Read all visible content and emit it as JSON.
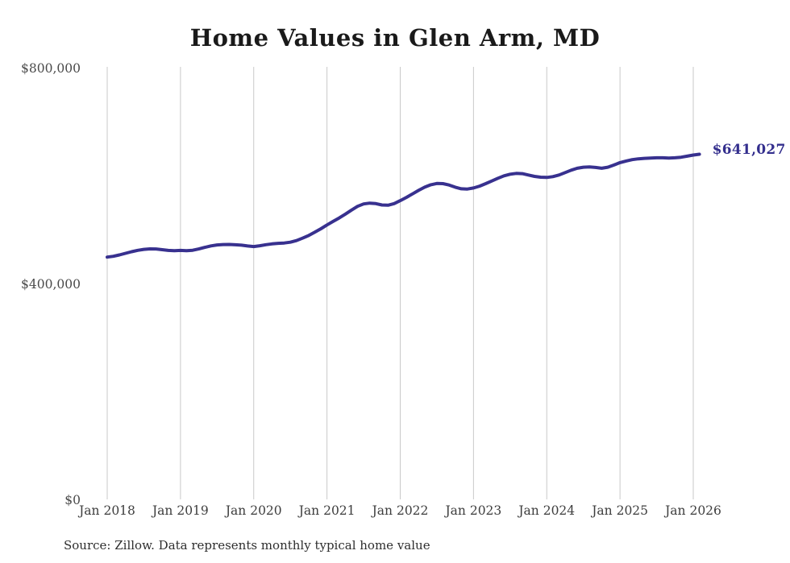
{
  "title": "Home Values in Glen Arm, MD",
  "source_note": "Source: Zillow. Data represents monthly typical home value",
  "colors": {
    "line": "#38318f",
    "end_label": "#332e8d",
    "grid": "#c9c9c9",
    "axis_text": "#4a4a4a",
    "title_text": "#1a1a1a",
    "source_text": "#2e2e2e",
    "background": "#ffffff"
  },
  "chart_data": {
    "type": "line",
    "title": "Home Values in Glen Arm, MD",
    "x_unit": "month",
    "x_start": "2018-01",
    "x_end": "2026-02",
    "x_tick_labels": [
      "Jan 2018",
      "Jan 2019",
      "Jan 2020",
      "Jan 2021",
      "Jan 2022",
      "Jan 2023",
      "Jan 2024",
      "Jan 2025",
      "Jan 2026"
    ],
    "months_per_tick": 12,
    "y_ticks": [
      {
        "label": "$0",
        "value": 0
      },
      {
        "label": "$400,000",
        "value": 400000
      },
      {
        "label": "$800,000",
        "value": 800000
      }
    ],
    "ylim": [
      0,
      800000
    ],
    "grid": "vertical-only",
    "legend": "none",
    "end_label": "$641,027",
    "end_value": 641027,
    "series": [
      {
        "name": "Monthly typical home value",
        "values": [
          450500,
          452000,
          454500,
          457500,
          460500,
          463000,
          464800,
          465600,
          465500,
          464200,
          462800,
          462400,
          462800,
          462300,
          463200,
          465500,
          468500,
          471200,
          473000,
          473800,
          473900,
          473300,
          472500,
          471000,
          470000,
          471500,
          473500,
          475000,
          476000,
          476500,
          478000,
          481000,
          485500,
          490500,
          496500,
          503000,
          510000,
          516500,
          523000,
          530000,
          537500,
          544500,
          549000,
          550500,
          549500,
          547000,
          546500,
          549500,
          555000,
          561000,
          567500,
          574000,
          580000,
          584500,
          586800,
          586500,
          584000,
          580000,
          577000,
          576500,
          578500,
          582000,
          586500,
          591500,
          596500,
          601000,
          604000,
          605500,
          605000,
          602500,
          600000,
          598500,
          598000,
          599500,
          602500,
          607000,
          611500,
          615000,
          617000,
          617500,
          616500,
          615000,
          617000,
          621000,
          625500,
          628500,
          631000,
          632500,
          633500,
          634000,
          634500,
          634500,
          634000,
          634500,
          635500,
          637500,
          639500,
          641027
        ]
      }
    ]
  }
}
